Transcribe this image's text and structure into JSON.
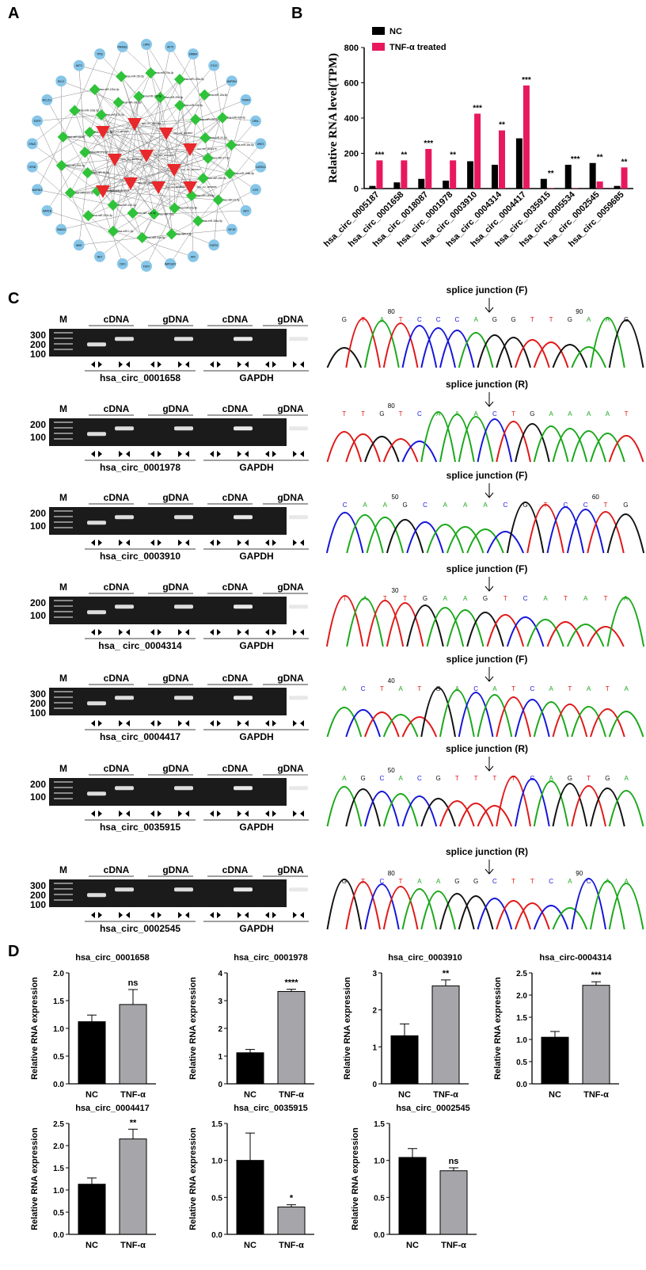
{
  "panels": {
    "A": "A",
    "B": "B",
    "C": "C",
    "D": "D"
  },
  "network": {
    "blue_color": "#87c6e8",
    "green_color": "#2fc33a",
    "red_color": "#e8282a",
    "blue_nodes": [
      "LRP6",
      "AKT3",
      "ERBB4",
      "CYLD",
      "MAP3K4",
      "TRAF6",
      "CRKL",
      "WNT1",
      "CARD10",
      "IGF1",
      "IGF2",
      "IGF1R",
      "FGFR1",
      "APC",
      "RAPGEF2",
      "FGF2",
      "CSF1",
      "MET",
      "INSR",
      "SMAD3",
      "MAP1B",
      "MAP3K2",
      "NFKB",
      "KRAS",
      "EGFR",
      "BCL2L1",
      "BCL2",
      "AKT2",
      "TP53",
      "RNASEL"
    ],
    "green_nodes": [
      "hsa-miR-29a-3p",
      "hsa-miR-29b-3p",
      "hsa-miR-125a-5p",
      "hsa-miR-143-3p",
      "hsa-miR-15a-5p",
      "hsa-miR-136-5p",
      "hsa-miR-424-5p",
      "hsa-miR-24-3p",
      "hsa-miR-30c-5p",
      "hsa-miR-17-5p",
      "hsa-miR-106b-5p",
      "hsa-miR-155-5p",
      "hsa-miR-21-5p",
      "hsa-miR-145-5p",
      "hsa-miR-181a-5p",
      "hsa-miR-20a-5p",
      "hsa-miR-7-5p",
      "hsa-miR-9-5p",
      "hsa-miR-34a-5p",
      "hsa-miR-126-3p",
      "hsa-miR-1-3p",
      "hsa-miR-128-3p",
      "hsa-miR-200c-3p",
      "hsa-miR-214-3p",
      "hsa-miR-223-3p",
      "hsa-miR-16-5p",
      "hsa-miR-19a-3p",
      "hsa-miR-27a-3p",
      "hsa-miR-93-5p",
      "hsa-miR-101-3p",
      "hsa-miR-103a-3p",
      "hsa-miR-122-5p",
      "hsa-miR-130a-3p",
      "hsa-miR-141-3p",
      "hsa-miR-150-5p",
      "hsa-miR-192-5p"
    ],
    "red_nodes": [
      "hsa_circ_0005187",
      "hsa_circ_0001658",
      "hsa_circ_0018087",
      "hsa_circ_0001978",
      "hsa_circ_0003910",
      "hsa_circ_0004314",
      "hsa_circ_0004417",
      "hsa_circ_0035915",
      "hsa_circ_0005534",
      "hsa_circ_0002545",
      "hsa_circ_0059685"
    ]
  },
  "chart_data": [
    {
      "type": "bar",
      "title": "",
      "ylabel": "Relative RNA level(TPM)",
      "ylim": [
        0,
        800
      ],
      "yticks": [
        0,
        200,
        400,
        600,
        800
      ],
      "legend_position": "top-left",
      "categories": [
        "hsa_circ_0005187",
        "hsa_circ_0001658",
        "hsa_circ_0018087",
        "hsa_circ_0001978",
        "hsa_circ_0003910",
        "hsa_circ_0004314",
        "hsa_circ_0004417",
        "hsa_circ_0035915",
        "hsa_circ_0005534",
        "hsa_circ_0002545",
        "hsa_circ_0059685"
      ],
      "series": [
        {
          "name": "NC",
          "color": "#000000",
          "values": [
            15,
            35,
            55,
            45,
            155,
            135,
            285,
            55,
            135,
            145,
            15
          ]
        },
        {
          "name": "TNF-α treated",
          "color": "#e8185f",
          "values": [
            160,
            160,
            225,
            160,
            425,
            330,
            585,
            2,
            2,
            40,
            120
          ]
        }
      ],
      "annotations": [
        "***",
        "**",
        "***",
        "**",
        "***",
        "**",
        "***",
        "**",
        "***",
        "**",
        "**"
      ]
    },
    {
      "type": "bar",
      "title": "hsa_circ_0001658",
      "ylabel": "Relative RNA expression",
      "categories": [
        "NC",
        "TNF-α"
      ],
      "values": [
        1.12,
        1.43
      ],
      "errors": [
        0.12,
        0.27
      ],
      "ylim": [
        0,
        2.0
      ],
      "yticks": [
        0.0,
        0.5,
        1.0,
        1.5,
        2.0
      ],
      "annotation": "ns"
    },
    {
      "type": "bar",
      "title": "hsa_circ_0001978",
      "ylabel": "Relative RNA expression",
      "categories": [
        "NC",
        "TNF-α"
      ],
      "values": [
        1.12,
        3.33
      ],
      "errors": [
        0.12,
        0.08
      ],
      "ylim": [
        0,
        4
      ],
      "yticks": [
        0,
        1,
        2,
        3,
        4
      ],
      "annotation": "****"
    },
    {
      "type": "bar",
      "title": "hsa_circ_0003910",
      "ylabel": "Relative RNA expression",
      "categories": [
        "NC",
        "TNF-α"
      ],
      "values": [
        1.3,
        2.65
      ],
      "errors": [
        0.32,
        0.16
      ],
      "ylim": [
        0,
        3
      ],
      "yticks": [
        0,
        1,
        2,
        3
      ],
      "annotation": "**"
    },
    {
      "type": "bar",
      "title": "hsa_circ-0004314",
      "ylabel": "Relative RNA expression",
      "categories": [
        "NC",
        "TNF-α"
      ],
      "values": [
        1.05,
        2.22
      ],
      "errors": [
        0.13,
        0.08
      ],
      "ylim": [
        0,
        2.5
      ],
      "yticks": [
        0.0,
        0.5,
        1.0,
        1.5,
        2.0,
        2.5
      ],
      "annotation": "***"
    },
    {
      "type": "bar",
      "title": "hsa_circ_0004417",
      "ylabel": "Relative RNA expression",
      "categories": [
        "NC",
        "TNF-α"
      ],
      "values": [
        1.13,
        2.15
      ],
      "errors": [
        0.14,
        0.22
      ],
      "ylim": [
        0,
        2.5
      ],
      "yticks": [
        0.0,
        0.5,
        1.0,
        1.5,
        2.0,
        2.5
      ],
      "annotation": "**"
    },
    {
      "type": "bar",
      "title": "hsa_circ_0035915",
      "ylabel": "Relative RNA expression",
      "categories": [
        "NC",
        "TNF-α"
      ],
      "values": [
        1.0,
        0.37
      ],
      "errors": [
        0.37,
        0.03
      ],
      "ylim": [
        0,
        1.5
      ],
      "yticks": [
        0.0,
        0.5,
        1.0,
        1.5
      ],
      "annotation": "*"
    },
    {
      "type": "bar",
      "title": "hsa_circ_0002545",
      "ylabel": "Relative RNA expression",
      "categories": [
        "NC",
        "TNF-α"
      ],
      "values": [
        1.04,
        0.86
      ],
      "errors": [
        0.12,
        0.04
      ],
      "ylim": [
        0,
        1.5
      ],
      "yticks": [
        0.0,
        0.5,
        1.0,
        1.5
      ],
      "annotation": "ns"
    }
  ],
  "gels": [
    {
      "name": "hsa_circ_0001658",
      "ladder": [
        "300",
        "200",
        "100"
      ],
      "lanes": [
        "cDNA",
        "gDNA",
        "cDNA",
        "gDNA"
      ],
      "gapdh": "GAPDH",
      "bands": [
        [
          0.42,
          null,
          0.6,
          0.58
        ],
        [
          null,
          null,
          null,
          null
        ]
      ]
    },
    {
      "name": "hsa_circ_0001978",
      "ladder": [
        "200",
        "100"
      ],
      "lanes": [
        "cDNA",
        "gDNA",
        "cDNA",
        "gDNA"
      ],
      "gapdh": "GAPDH"
    },
    {
      "name": "hsa_circ_0003910",
      "ladder": [
        "200",
        "100"
      ],
      "lanes": [
        "cDNA",
        "gDNA",
        "cDNA",
        "gDNA"
      ],
      "gapdh": "GAPDH"
    },
    {
      "name": "hsa_ circ_0004314",
      "ladder": [
        "200",
        "100"
      ],
      "lanes": [
        "cDNA",
        "gDNA",
        "cDNA",
        "gDNA"
      ],
      "gapdh": "GAPDH"
    },
    {
      "name": "hsa_circ_0004417",
      "ladder": [
        "300",
        "200",
        "100"
      ],
      "lanes": [
        "cDNA",
        "gDNA",
        "cDNA",
        "gDNA"
      ],
      "gapdh": "GAPDH"
    },
    {
      "name": "hsa_circ_0035915",
      "ladder": [
        "200",
        "100"
      ],
      "lanes": [
        "cDNA",
        "gDNA",
        "cDNA",
        "gDNA"
      ],
      "gapdh": "GAPDH"
    },
    {
      "name": "hsa_circ_0002545",
      "ladder": [
        "300",
        "200",
        "100"
      ],
      "lanes": [
        "cDNA",
        "gDNA",
        "cDNA",
        "gDNA"
      ],
      "gapdh": "GAPDH"
    }
  ],
  "marker_label": "M",
  "seqs": [
    {
      "title": "splice junction (F)",
      "seq": "GTATCCCAGGTTGAAG",
      "nums": [
        "80",
        "90"
      ]
    },
    {
      "title": "splice junction (R)",
      "seq": "TTGTCAAACTGAAAAT",
      "nums": [
        "80"
      ]
    },
    {
      "title": "splice junction (F)",
      "seq": "CAAGCAAACGTCCTG",
      "nums": [
        "50",
        "60"
      ]
    },
    {
      "title": "splice junction (F)",
      "seq": "TATTGAAGTCATATA",
      "nums": [
        "30"
      ]
    },
    {
      "title": "splice junction (F)",
      "seq": "ACTATGACATCATATA",
      "nums": [
        "40"
      ]
    },
    {
      "title": "splice junction (R)",
      "seq": "AGCACGTTTTCAGTGA",
      "nums": [
        "50"
      ]
    },
    {
      "title": "splice junction (R)",
      "seq": "GTCTAAGGCTTCACAA",
      "nums": [
        "80",
        "90"
      ]
    }
  ],
  "base_colors": {
    "A": "#1aa81a",
    "C": "#1515d8",
    "G": "#111111",
    "T": "#e01818"
  }
}
